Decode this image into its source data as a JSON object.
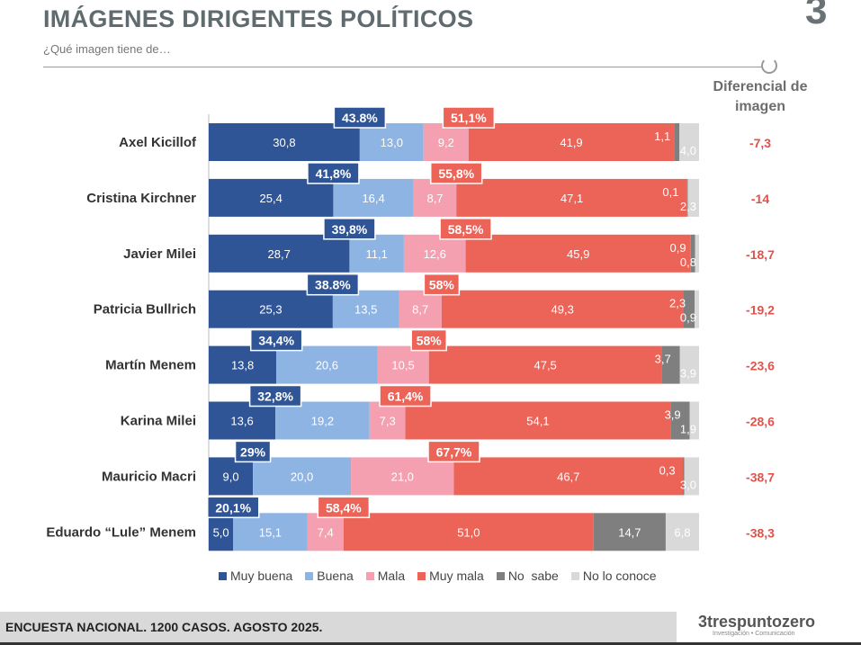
{
  "header": {
    "title": "IMÁGENES DIRIGENTES POLÍTICOS",
    "subtitle": "¿Qué imagen tiene de…",
    "logo_glyph": "3",
    "diff_heading": "Diferencial de imagen"
  },
  "chart_data": {
    "type": "bar",
    "orientation": "horizontal",
    "stacked": true,
    "categories": [
      "Axel Kicillof",
      "Cristina Kirchner",
      "Javier Milei",
      "Patricia Bullrich",
      "Martín Menem",
      "Karina Milei",
      "Mauricio Macri",
      "Eduardo “Lule” Menem"
    ],
    "series": [
      {
        "name": "Muy buena",
        "color": "#2f5597",
        "values": [
          30.8,
          25.4,
          28.7,
          25.3,
          13.8,
          13.6,
          9.0,
          5.0
        ]
      },
      {
        "name": "Buena",
        "color": "#8eb4e3",
        "values": [
          13.0,
          16.4,
          11.1,
          13.5,
          20.6,
          19.2,
          20.0,
          15.1
        ]
      },
      {
        "name": "Mala",
        "color": "#f4a0b0",
        "values": [
          9.2,
          8.7,
          12.6,
          8.7,
          10.5,
          7.3,
          21.0,
          7.4
        ]
      },
      {
        "name": "Muy mala",
        "color": "#ec6358",
        "values": [
          41.9,
          47.1,
          45.9,
          49.3,
          47.5,
          54.1,
          46.7,
          51.0
        ]
      },
      {
        "name": "No  sabe",
        "color": "#7f7f7f",
        "values": [
          1.1,
          0.1,
          0.9,
          2.3,
          3.7,
          3.9,
          0.3,
          14.7
        ]
      },
      {
        "name": "No lo conoce",
        "color": "#d9d9d9",
        "values": [
          4.0,
          2.3,
          0.8,
          0.9,
          3.9,
          1.9,
          3.0,
          6.8
        ]
      }
    ],
    "positive_totals": [
      "43.8%",
      "41,8%",
      "39,8%",
      "38.8%",
      "34,4%",
      "32,8%",
      "29%",
      "20,1%"
    ],
    "negative_totals": [
      "51,1%",
      "55,8%",
      "58,5%",
      "58%",
      "58%",
      "61,4%",
      "67,7%",
      "58,4%"
    ],
    "differential": [
      "-7,3",
      "-14",
      "-18,7",
      "-19,2",
      "-23,6",
      "-28,6",
      "-38,7",
      "-38,3"
    ],
    "xlim": [
      0,
      100
    ],
    "legend": "bottom",
    "grid": false
  },
  "colors": {
    "positive_box": "#2f5597",
    "negative_box": "#ec6358",
    "differential": "#e0524a"
  },
  "footer": {
    "text": "ENCUESTA NACIONAL. 1200 CASOS. AGOSTO 2025.",
    "brand": "trespuntozero",
    "brand_sub": "Investigación • Comunicación"
  }
}
